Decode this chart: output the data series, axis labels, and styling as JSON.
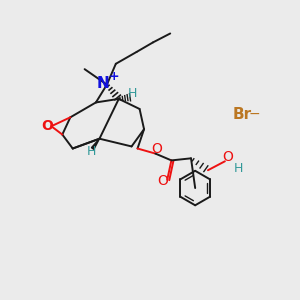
{
  "bg_color": "#ebebeb",
  "bond_color": "#1a1a1a",
  "N_color": "#1010dd",
  "O_color": "#ee1111",
  "Br_color": "#bb7722",
  "H_color": "#339999",
  "figsize": [
    3.0,
    3.0
  ],
  "dpi": 100,
  "xlim": [
    0,
    10
  ],
  "ylim": [
    0,
    10
  ]
}
